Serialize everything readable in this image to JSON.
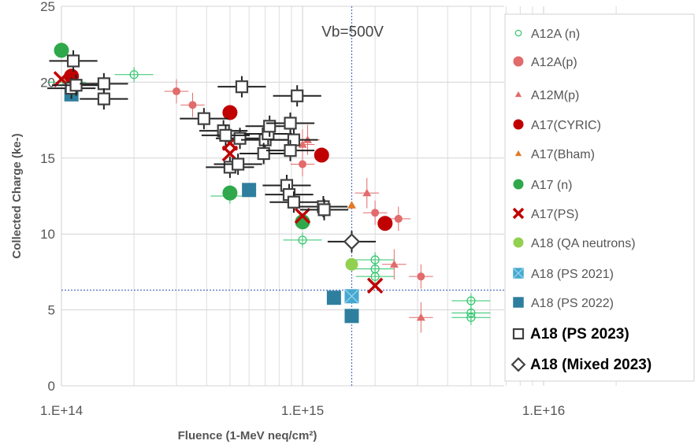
{
  "chart_data": {
    "type": "scatter",
    "title": "",
    "xlabel": "Fluence (1-MeV neq/cm²)",
    "ylabel": "Collected Charge (ke-)",
    "xscale": "log",
    "xlim": [
      100000000000000.0,
      2e+16
    ],
    "ylim": [
      0,
      25
    ],
    "xticks": [
      "1.E+14",
      "1.E+15",
      "1.E+16"
    ],
    "yticks": [
      "0",
      "5",
      "10",
      "15",
      "20",
      "25"
    ],
    "grid": true,
    "legend_position": "right",
    "annotations": [
      {
        "text": "Vb=500V",
        "at": [
          1200000000000000.0,
          23
        ]
      }
    ],
    "reference_lines": [
      {
        "orientation": "vertical",
        "x": 1600000000000000.0
      },
      {
        "orientation": "horizontal",
        "y": 6.3
      }
    ],
    "series": [
      {
        "name": "A12A (n)",
        "marker": "open-circle",
        "color": "#2ec46a",
        "points": [
          [
            200000000000000.0,
            20.5
          ],
          [
            1000000000000000.0,
            9.6
          ],
          [
            2000000000000000.0,
            8.3
          ],
          [
            2000000000000000.0,
            7.7
          ],
          [
            2000000000000000.0,
            7.2
          ],
          [
            5000000000000000.0,
            5.6
          ],
          [
            5000000000000000.0,
            4.8
          ],
          [
            5000000000000000.0,
            4.5
          ],
          [
            105000000000000.0,
            20.0
          ],
          [
            500000000000000.0,
            12.5
          ]
        ],
        "xerr": 0.08,
        "yerr": 0.5
      },
      {
        "name": "A12A(p)",
        "marker": "circle",
        "color": "#e26b6b",
        "points": [
          [
            300000000000000.0,
            19.4
          ],
          [
            350000000000000.0,
            18.5
          ],
          [
            1000000000000000.0,
            14.6
          ],
          [
            2000000000000000.0,
            11.4
          ],
          [
            2500000000000000.0,
            11.0
          ],
          [
            3100000000000000.0,
            7.2
          ]
        ],
        "xerr": 0.05,
        "yerr": 0.8
      },
      {
        "name": "A12M(p)",
        "marker": "triangle",
        "color": "#e26b6b",
        "points": [
          [
            1000000000000000.0,
            15.9
          ],
          [
            1050000000000000.0,
            16.2
          ],
          [
            1850000000000000.0,
            12.7
          ],
          [
            2400000000000000.0,
            8.0
          ],
          [
            3100000000000000.0,
            4.5
          ]
        ],
        "xerr": 0.05,
        "yerr": 1.0
      },
      {
        "name": "A17(CYRIC)",
        "marker": "circle",
        "color": "#c00000",
        "points": [
          [
            110000000000000.0,
            20.4
          ],
          [
            500000000000000.0,
            18.0
          ],
          [
            1200000000000000.0,
            15.2
          ],
          [
            2200000000000000.0,
            10.7
          ]
        ]
      },
      {
        "name": "A17(Bham)",
        "marker": "triangle",
        "color": "#e07b28",
        "points": [
          [
            1600000000000000.0,
            11.9
          ]
        ]
      },
      {
        "name": "A17 (n)",
        "marker": "circle",
        "color": "#2ea84a",
        "points": [
          [
            100000000000000.0,
            22.1
          ],
          [
            500000000000000.0,
            12.7
          ],
          [
            1000000000000000.0,
            10.8
          ]
        ]
      },
      {
        "name": "A17(PS)",
        "marker": "x",
        "color": "#c00000",
        "points": [
          [
            100000000000000.0,
            20.2
          ],
          [
            500000000000000.0,
            16.0
          ],
          [
            500000000000000.0,
            15.3
          ],
          [
            1000000000000000.0,
            11.2
          ],
          [
            2000000000000000.0,
            6.6
          ]
        ]
      },
      {
        "name": "A18 (QA neutrons)",
        "marker": "circle",
        "color": "#92d050",
        "points": [
          [
            1600000000000000.0,
            8.0
          ]
        ]
      },
      {
        "name": "A18 (PS 2021)",
        "marker": "square-x",
        "color": "#46a8d0",
        "points": [
          [
            1600000000000000.0,
            5.9
          ]
        ]
      },
      {
        "name": "A18 (PS 2022)",
        "marker": "square",
        "color": "#2e7f9e",
        "points": [
          [
            110000000000000.0,
            19.2
          ],
          [
            600000000000000.0,
            12.9
          ],
          [
            1350000000000000.0,
            5.8
          ],
          [
            1600000000000000.0,
            4.6
          ]
        ]
      },
      {
        "name": "A18 (PS 2023)",
        "marker": "open-square",
        "color": "#404040",
        "points": [
          [
            112000000000000.0,
            21.4
          ],
          [
            110000000000000.0,
            19.6
          ],
          [
            115000000000000.0,
            19.8
          ],
          [
            150000000000000.0,
            19.9
          ],
          [
            150000000000000.0,
            18.9
          ],
          [
            560000000000000.0,
            19.7
          ],
          [
            390000000000000.0,
            17.6
          ],
          [
            470000000000000.0,
            16.8
          ],
          [
            550000000000000.0,
            16.3
          ],
          [
            480000000000000.0,
            16.5
          ],
          [
            700000000000000.0,
            16.2
          ],
          [
            720000000000000.0,
            16.6
          ],
          [
            730000000000000.0,
            17.1
          ],
          [
            890000000000000.0,
            17.3
          ],
          [
            950000000000000.0,
            19.1
          ],
          [
            920000000000000.0,
            16.2
          ],
          [
            500000000000000.0,
            14.4
          ],
          [
            540000000000000.0,
            14.6
          ],
          [
            690000000000000.0,
            15.3
          ],
          [
            890000000000000.0,
            15.5
          ],
          [
            860000000000000.0,
            13.2
          ],
          [
            880000000000000.0,
            12.6
          ],
          [
            920000000000000.0,
            12.1
          ],
          [
            1220000000000000.0,
            11.8
          ],
          [
            1230000000000000.0,
            11.6
          ]
        ],
        "xerr": 0.1,
        "yerr": 0.7
      },
      {
        "name": "A18 (Mixed 2023)",
        "marker": "open-diamond",
        "color": "#404040",
        "points": [
          [
            1600000000000000.0,
            9.5
          ]
        ],
        "xerr": 0.1,
        "yerr": 0.7
      }
    ]
  }
}
